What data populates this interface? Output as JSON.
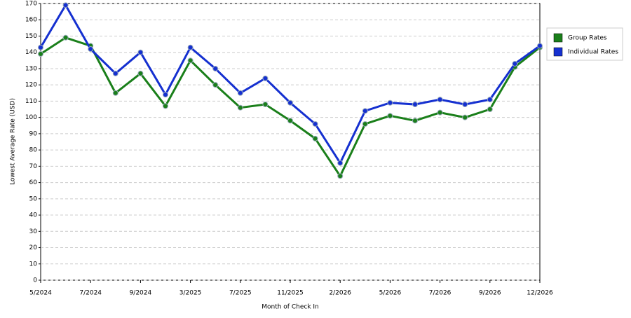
{
  "chart_data": {
    "type": "line",
    "x_label": "Month of Check In",
    "y_label": "Lowest Average Rate (USD)",
    "categories": [
      "5/2024",
      null,
      "7/2024",
      null,
      "9/2024",
      null,
      "3/2025",
      null,
      "7/2025",
      null,
      "11/2025",
      null,
      "2/2026",
      null,
      "5/2026",
      null,
      "7/2026",
      null,
      "9/2026",
      null,
      "12/2026"
    ],
    "series": [
      {
        "name": "Group Rates",
        "color": "#1a7f1a",
        "values": [
          139,
          149,
          144,
          115,
          127,
          107,
          135,
          120,
          106,
          108,
          98,
          87,
          64,
          96,
          101,
          98,
          103,
          100,
          105,
          131,
          143
        ]
      },
      {
        "name": "Individual Rates",
        "color": "#1530d0",
        "values": [
          143,
          169,
          142,
          127,
          140,
          114,
          143,
          130,
          115,
          124,
          109,
          96,
          72,
          104,
          109,
          108,
          111,
          108,
          111,
          133,
          144
        ]
      }
    ],
    "ylim": [
      0,
      170
    ],
    "yticks": [
      0,
      10,
      20,
      30,
      40,
      50,
      60,
      70,
      80,
      90,
      100,
      110,
      120,
      130,
      140,
      150,
      160,
      170
    ],
    "grid": true,
    "legend": "right"
  }
}
